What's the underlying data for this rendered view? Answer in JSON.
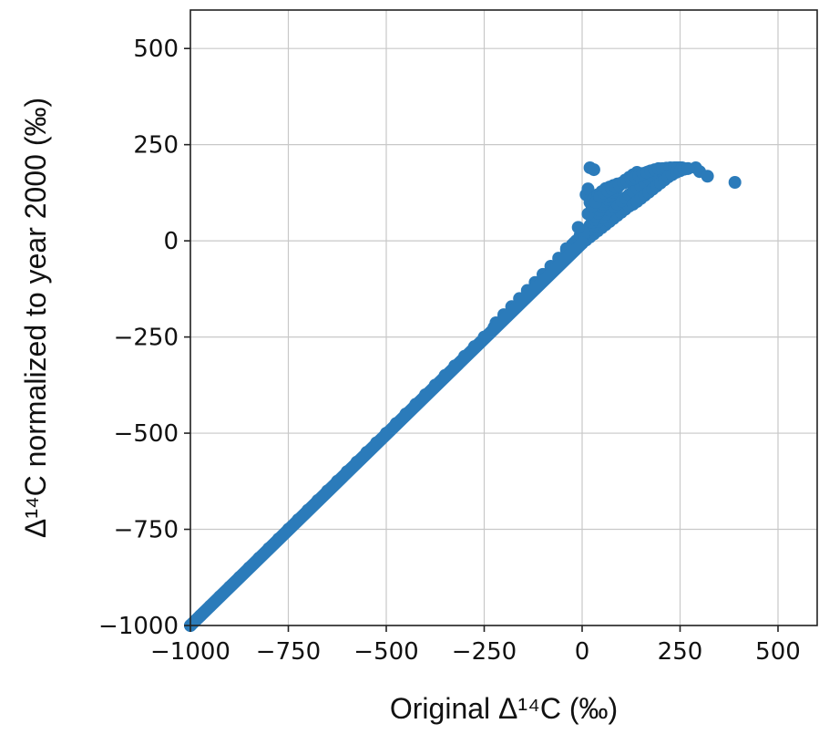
{
  "chart_data": {
    "type": "scatter",
    "xlabel": "Original Δ¹⁴C (‰)",
    "ylabel": "Δ¹⁴C normalized to year 2000 (‰)",
    "xlim": [
      -1000,
      600
    ],
    "ylim": [
      -1000,
      600
    ],
    "xticks": [
      -1000,
      -750,
      -500,
      -250,
      0,
      250,
      500
    ],
    "yticks": [
      -1000,
      -750,
      -500,
      -250,
      0,
      250,
      500
    ],
    "xtick_labels": [
      "−1000",
      "−750",
      "−500",
      "−250",
      "0",
      "250",
      "500"
    ],
    "ytick_labels": [
      "−1000",
      "−750",
      "−500",
      "−250",
      "0",
      "250",
      "500"
    ],
    "grid": true,
    "marker_color": "#2b7bba",
    "series": [
      {
        "x": [
          -1000,
          -975,
          -950,
          -925,
          -900,
          -875,
          -850,
          -825,
          -800,
          -775,
          -750,
          -725,
          -700,
          -675,
          -650,
          -625,
          -600,
          -575,
          -550,
          -525,
          -500,
          -475,
          -450,
          -425,
          -400,
          -375,
          -350,
          -325,
          -300,
          -275,
          -250,
          -225,
          -200,
          -175,
          -150,
          -125,
          -100,
          -75,
          -50,
          -25,
          0,
          10,
          20,
          30,
          40,
          50,
          60,
          70,
          80,
          90,
          100,
          110,
          120,
          130,
          140,
          150,
          160,
          170,
          180,
          190,
          200,
          210,
          220,
          230,
          240,
          250,
          260,
          270,
          -220,
          -200,
          -180,
          -160,
          -140,
          -120,
          -100,
          -80,
          -60,
          -40,
          -20,
          -10,
          0,
          10,
          20,
          30,
          40,
          50,
          60,
          70,
          80,
          90,
          100,
          110,
          120,
          130,
          140,
          150,
          160,
          170,
          180,
          190,
          200,
          210,
          220,
          230,
          240,
          250,
          20,
          25,
          30,
          35,
          40,
          45,
          50,
          55,
          60,
          65,
          70,
          75,
          80,
          85,
          90,
          95,
          100,
          110,
          120,
          130,
          140,
          10,
          15,
          20,
          30,
          40,
          50,
          60,
          70,
          80,
          90,
          100,
          110,
          130,
          150,
          170,
          -5,
          -15,
          -25,
          -40,
          5,
          15,
          25,
          35,
          45,
          55,
          65,
          75,
          85,
          95,
          105,
          115,
          125,
          135,
          145,
          155,
          165,
          175,
          185,
          195,
          205,
          215,
          225,
          235,
          245,
          255,
          290,
          300,
          320,
          390,
          130,
          140,
          150,
          160,
          170,
          180,
          190,
          200,
          210,
          220,
          230,
          240,
          250,
          260,
          270,
          -10,
          20,
          30
        ],
        "y": [
          -1000,
          -975,
          -950,
          -925,
          -900,
          -875,
          -850,
          -825,
          -800,
          -775,
          -750,
          -725,
          -700,
          -675,
          -650,
          -625,
          -600,
          -575,
          -550,
          -525,
          -500,
          -475,
          -450,
          -425,
          -400,
          -375,
          -350,
          -325,
          -300,
          -275,
          -250,
          -225,
          -200,
          -175,
          -150,
          -125,
          -100,
          -75,
          -50,
          -28,
          -6,
          2,
          10,
          18,
          26,
          34,
          42,
          50,
          58,
          66,
          74,
          82,
          90,
          98,
          106,
          114,
          122,
          130,
          138,
          146,
          154,
          162,
          170,
          176,
          182,
          186,
          188,
          188,
          -213,
          -192,
          -171,
          -150,
          -129,
          -108,
          -87,
          -66,
          -45,
          -24,
          -5,
          4,
          12,
          22,
          30,
          40,
          50,
          60,
          70,
          80,
          88,
          96,
          104,
          112,
          120,
          128,
          136,
          144,
          152,
          160,
          168,
          175,
          182,
          186,
          188,
          189,
          190,
          190,
          40,
          48,
          56,
          64,
          72,
          80,
          88,
          95,
          102,
          108,
          114,
          120,
          126,
          132,
          138,
          144,
          150,
          158,
          165,
          172,
          178,
          120,
          135,
          100,
          110,
          120,
          128,
          136,
          140,
          144,
          148,
          150,
          152,
          160,
          170,
          180,
          15,
          0,
          -10,
          -20,
          20,
          70,
          90,
          100,
          115,
          125,
          130,
          135,
          140,
          145,
          150,
          155,
          160,
          165,
          170,
          175,
          178,
          182,
          185,
          188,
          188,
          189,
          190,
          190,
          190,
          190,
          190,
          180,
          168,
          152,
          95,
          102,
          110,
          118,
          126,
          134,
          142,
          150,
          158,
          166,
          172,
          178,
          182,
          186,
          188,
          35,
          190,
          185
        ]
      }
    ]
  }
}
